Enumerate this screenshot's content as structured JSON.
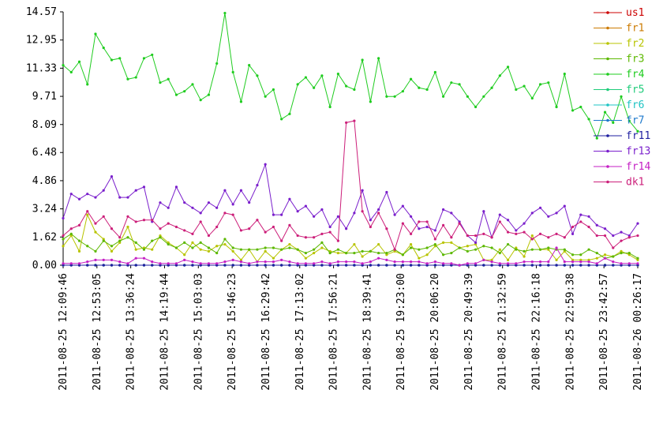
{
  "chart_data": {
    "type": "line",
    "grid": false,
    "legend": "right",
    "x": [
      "2011-08-25 12:09:46",
      "2011-08-25 12:20:08",
      "2011-08-25 12:30:30",
      "2011-08-25 12:40:52",
      "2011-08-25 12:51:14",
      "2011-08-25 13:01:36",
      "2011-08-25 13:11:58",
      "2011-08-25 13:22:20",
      "2011-08-25 13:32:42",
      "2011-08-25 13:43:04",
      "2011-08-25 13:53:26",
      "2011-08-25 14:03:48",
      "2011-08-25 14:14:10",
      "2011-08-25 14:24:32",
      "2011-08-25 14:34:54",
      "2011-08-25 14:45:16",
      "2011-08-25 14:55:38",
      "2011-08-25 15:06:00",
      "2011-08-25 15:16:22",
      "2011-08-25 15:26:44",
      "2011-08-25 15:37:06",
      "2011-08-25 15:47:28",
      "2011-08-25 15:57:50",
      "2011-08-25 16:08:12",
      "2011-08-25 16:18:34",
      "2011-08-25 16:28:56",
      "2011-08-25 16:39:18",
      "2011-08-25 16:49:40",
      "2011-08-25 17:00:02",
      "2011-08-25 17:10:24",
      "2011-08-25 17:20:46",
      "2011-08-25 17:31:08",
      "2011-08-25 17:41:30",
      "2011-08-25 17:51:52",
      "2011-08-25 18:02:14",
      "2011-08-25 18:12:36",
      "2011-08-25 18:22:58",
      "2011-08-25 18:33:20",
      "2011-08-25 18:43:42",
      "2011-08-25 18:54:04",
      "2011-08-25 19:04:26",
      "2011-08-25 19:14:48",
      "2011-08-25 19:25:10",
      "2011-08-25 19:35:32",
      "2011-08-25 19:45:54",
      "2011-08-25 19:56:16",
      "2011-08-25 20:06:38",
      "2011-08-25 20:17:00",
      "2011-08-25 20:27:22",
      "2011-08-25 20:37:44",
      "2011-08-25 20:48:06",
      "2011-08-25 20:58:28",
      "2011-08-25 21:08:50",
      "2011-08-25 21:19:12",
      "2011-08-25 21:29:34",
      "2011-08-25 21:39:56",
      "2011-08-25 21:50:18",
      "2011-08-25 22:00:40",
      "2011-08-25 22:11:02",
      "2011-08-25 22:21:24",
      "2011-08-25 22:31:46",
      "2011-08-25 22:42:08",
      "2011-08-25 22:52:30",
      "2011-08-25 23:02:52",
      "2011-08-25 23:13:14",
      "2011-08-25 23:23:36",
      "2011-08-25 23:33:58",
      "2011-08-25 23:44:20",
      "2011-08-25 23:54:42",
      "2011-08-26 00:05:04",
      "2011-08-26 00:15:26",
      "2011-08-26 00:26:17"
    ],
    "xlim": [
      "2011-08-25 12:09:46",
      "2011-08-26 00:26:17"
    ],
    "xticks": [
      "2011-08-25 12:09:46",
      "2011-08-25 12:53:05",
      "2011-08-25 13:36:24",
      "2011-08-25 14:19:44",
      "2011-08-25 15:03:03",
      "2011-08-25 15:46:23",
      "2011-08-25 16:29:42",
      "2011-08-25 17:13:02",
      "2011-08-25 17:56:21",
      "2011-08-25 18:39:41",
      "2011-08-25 19:23:00",
      "2011-08-25 20:06:20",
      "2011-08-25 20:49:39",
      "2011-08-25 21:32:59",
      "2011-08-25 22:16:18",
      "2011-08-25 22:59:38",
      "2011-08-25 23:42:57",
      "2011-08-26 00:26:17"
    ],
    "ylim": [
      0,
      14.57
    ],
    "yticks": [
      {
        "value": 0,
        "label": "0.00"
      },
      1.62,
      3.24,
      4.86,
      6.48,
      8.09,
      9.71,
      11.33,
      12.95,
      14.57
    ],
    "series": [
      {
        "name": "us1",
        "color": "#cc0000",
        "values": [
          0,
          0,
          0,
          0,
          0,
          0,
          0,
          0,
          0,
          0,
          0,
          0,
          0,
          0,
          0,
          0,
          0,
          0,
          0,
          0,
          0,
          0,
          0,
          0,
          0,
          0,
          0,
          0,
          0,
          0,
          0,
          0,
          0,
          0,
          0,
          0,
          0,
          0,
          0,
          0,
          0,
          0,
          0,
          0,
          0,
          0,
          0,
          0,
          0,
          0,
          0,
          0,
          0,
          0,
          0,
          0,
          0,
          0,
          0,
          0,
          0,
          0,
          0,
          0,
          0,
          0,
          0,
          0,
          0,
          0,
          0,
          0
        ]
      },
      {
        "name": "fr1",
        "color": "#cc7a00",
        "values": [
          0,
          0,
          0,
          0,
          0,
          0,
          0,
          0,
          0,
          0,
          0,
          0,
          0,
          0,
          0,
          0,
          0,
          0,
          0,
          0,
          0,
          0,
          0,
          0,
          0,
          0,
          0,
          0,
          0,
          0,
          0,
          0,
          0,
          0,
          0,
          0,
          0,
          0,
          0,
          0,
          0,
          0,
          0,
          0,
          0,
          0,
          0,
          0,
          0,
          0,
          0,
          0,
          0,
          0,
          0,
          0,
          0,
          0,
          0,
          0,
          0,
          0,
          0,
          0,
          0,
          0,
          0,
          0,
          0,
          0,
          0,
          0
        ]
      },
      {
        "name": "fr2",
        "color": "#b8c400",
        "values": [
          1.1,
          1.7,
          0.8,
          2.9,
          1.9,
          1.5,
          0.8,
          1.3,
          2.2,
          0.9,
          1.0,
          0.9,
          1.7,
          1.3,
          1.0,
          0.6,
          1.3,
          0.9,
          0.8,
          1.1,
          1.2,
          0.8,
          0.3,
          0.9,
          0.2,
          0.8,
          0.4,
          0.9,
          1.2,
          0.9,
          0.4,
          0.7,
          1.0,
          0.8,
          0.7,
          0.7,
          1.2,
          0.5,
          0.8,
          1.2,
          0.6,
          0.8,
          0.6,
          1.2,
          0.4,
          0.6,
          1.1,
          1.3,
          1.3,
          1.0,
          1.1,
          1.2,
          0.3,
          0.3,
          0.9,
          0.3,
          1.0,
          0.5,
          1.7,
          0.9,
          0.9,
          0.3,
          0.8,
          0.3,
          0.3,
          0.3,
          0.4,
          0.6,
          0.5,
          0.8,
          0.6,
          0.3
        ]
      },
      {
        "name": "fr3",
        "color": "#5cb800",
        "values": [
          1.5,
          1.8,
          1.4,
          1.1,
          0.8,
          1.4,
          1.1,
          1.4,
          1.6,
          1.3,
          0.9,
          1.4,
          1.6,
          1.2,
          1.0,
          1.3,
          1.0,
          1.3,
          1.0,
          0.7,
          1.5,
          1.0,
          0.9,
          0.9,
          0.9,
          1.0,
          1.0,
          0.9,
          1.0,
          0.9,
          0.7,
          0.9,
          1.3,
          0.7,
          0.9,
          0.7,
          0.7,
          0.8,
          0.8,
          0.7,
          0.7,
          0.9,
          0.6,
          1.0,
          0.9,
          1.0,
          1.2,
          0.6,
          0.7,
          1.0,
          0.8,
          0.9,
          1.1,
          1.0,
          0.7,
          1.2,
          0.9,
          0.8,
          0.9,
          0.9,
          1.0,
          0.9,
          0.9,
          0.6,
          0.6,
          0.9,
          0.7,
          0.4,
          0.5,
          0.7,
          0.7,
          0.4
        ]
      },
      {
        "name": "fr4",
        "color": "#1fcc1f",
        "values": [
          11.5,
          11.1,
          11.7,
          10.4,
          13.3,
          12.5,
          11.8,
          11.9,
          10.7,
          10.8,
          11.9,
          12.1,
          10.5,
          10.7,
          9.8,
          10.0,
          10.4,
          9.5,
          9.8,
          11.6,
          14.5,
          11.1,
          9.4,
          11.5,
          10.9,
          9.7,
          10.1,
          8.4,
          8.7,
          10.4,
          10.8,
          10.2,
          10.9,
          9.1,
          11.0,
          10.3,
          10.1,
          11.8,
          9.4,
          11.9,
          9.7,
          9.7,
          10.0,
          10.7,
          10.2,
          10.1,
          11.1,
          9.7,
          10.5,
          10.4,
          9.7,
          9.1,
          9.7,
          10.2,
          10.9,
          11.4,
          10.1,
          10.3,
          9.6,
          10.4,
          10.5,
          9.1,
          11.0,
          8.9,
          9.1,
          8.4,
          7.3,
          8.8,
          8.2,
          9.7,
          8.3,
          7.7
        ]
      },
      {
        "name": "fr5",
        "color": "#1fcc7a",
        "values": [
          0,
          0,
          0,
          0,
          0,
          0,
          0,
          0,
          0,
          0,
          0,
          0,
          0,
          0,
          0,
          0,
          0,
          0,
          0,
          0,
          0,
          0,
          0,
          0,
          0,
          0,
          0,
          0,
          0,
          0,
          0,
          0,
          0,
          0,
          0,
          0,
          0,
          0,
          0,
          0,
          0,
          0,
          0,
          0,
          0,
          0,
          0,
          0,
          0,
          0,
          0,
          0,
          0,
          0,
          0,
          0,
          0,
          0,
          0,
          0,
          0,
          0,
          0,
          0,
          0,
          0,
          0,
          0,
          0,
          0,
          0,
          0
        ]
      },
      {
        "name": "fr6",
        "color": "#1fc4c4",
        "values": [
          0,
          0,
          0,
          0,
          0,
          0,
          0,
          0,
          0,
          0,
          0,
          0,
          0,
          0,
          0,
          0,
          0,
          0,
          0,
          0,
          0,
          0,
          0,
          0,
          0,
          0,
          0,
          0,
          0,
          0,
          0,
          0,
          0,
          0,
          0,
          0,
          0,
          0,
          0,
          0,
          0,
          0,
          0,
          0,
          0,
          0,
          0,
          0,
          0,
          0,
          0,
          0,
          0,
          0,
          0,
          0,
          0,
          0,
          0,
          0,
          0,
          0,
          0,
          0,
          0,
          0,
          0,
          0,
          0,
          0,
          0,
          0
        ]
      },
      {
        "name": "fr7",
        "color": "#1f7acc",
        "values": [
          0,
          0,
          0,
          0,
          0,
          0,
          0,
          0,
          0,
          0,
          0,
          0,
          0,
          0,
          0,
          0,
          0,
          0,
          0,
          0,
          0,
          0,
          0,
          0,
          0,
          0,
          0,
          0,
          0,
          0,
          0,
          0,
          0,
          0,
          0,
          0,
          0,
          0,
          0,
          0,
          0,
          0,
          0,
          0,
          0,
          0,
          0,
          0,
          0,
          0,
          0,
          0,
          0,
          0,
          0,
          0,
          0,
          0,
          0,
          0,
          0,
          0,
          0,
          0,
          0,
          0,
          0,
          0,
          0,
          0,
          0,
          0
        ]
      },
      {
        "name": "fr11",
        "color": "#1f1fa0",
        "values": [
          0,
          0,
          0,
          0,
          0,
          0,
          0,
          0,
          0,
          0,
          0,
          0,
          0,
          0,
          0,
          0,
          0,
          0,
          0,
          0,
          0,
          0,
          0,
          0,
          0,
          0,
          0,
          0,
          0,
          0,
          0,
          0,
          0,
          0,
          0,
          0,
          0,
          0,
          0,
          0,
          0,
          0,
          0,
          0,
          0,
          0,
          0,
          0,
          0,
          0,
          0,
          0,
          0,
          0,
          0,
          0,
          0,
          0,
          0,
          0,
          0,
          0,
          0,
          0,
          0,
          0,
          0,
          0,
          0,
          0,
          0,
          0
        ]
      },
      {
        "name": "fr13",
        "color": "#7a1fcc",
        "values": [
          2.7,
          4.1,
          3.8,
          4.1,
          3.9,
          4.3,
          5.1,
          3.9,
          3.9,
          4.3,
          4.5,
          2.5,
          3.6,
          3.3,
          4.5,
          3.6,
          3.3,
          3.0,
          3.6,
          3.3,
          4.3,
          3.5,
          4.3,
          3.6,
          4.6,
          5.8,
          2.9,
          2.9,
          3.8,
          3.1,
          3.4,
          2.8,
          3.2,
          2.2,
          2.8,
          2.1,
          3.0,
          4.3,
          2.6,
          3.2,
          4.2,
          2.9,
          3.4,
          2.8,
          2.1,
          2.2,
          2.0,
          3.2,
          3.0,
          2.5,
          1.7,
          1.3,
          3.1,
          1.6,
          2.9,
          2.6,
          2.0,
          2.4,
          3.0,
          3.3,
          2.8,
          3.0,
          3.4,
          1.8,
          2.9,
          2.8,
          2.3,
          2.1,
          1.7,
          1.9,
          1.7,
          2.4
        ]
      },
      {
        "name": "fr14",
        "color": "#c41fc4",
        "values": [
          0.1,
          0.1,
          0.1,
          0.2,
          0.3,
          0.3,
          0.3,
          0.2,
          0.1,
          0.4,
          0.4,
          0.2,
          0.1,
          0.1,
          0.1,
          0.3,
          0.2,
          0.1,
          0.1,
          0.1,
          0.2,
          0.3,
          0.2,
          0.1,
          0.2,
          0.2,
          0.2,
          0.3,
          0.2,
          0.1,
          0.1,
          0.1,
          0.2,
          0.1,
          0.2,
          0.2,
          0.2,
          0.1,
          0.2,
          0.4,
          0.3,
          0.2,
          0.2,
          0.2,
          0.2,
          0.1,
          0.2,
          0.1,
          0.1,
          0.0,
          0.1,
          0.1,
          0.3,
          0.2,
          0.1,
          0.1,
          0.1,
          0.2,
          0.2,
          0.2,
          0.2,
          1.0,
          0.2,
          0.2,
          0.2,
          0.2,
          0.1,
          0.4,
          0.2,
          0.1,
          0.1,
          0.1
        ]
      },
      {
        "name": "dk1",
        "color": "#cc1f7a",
        "values": [
          1.7,
          2.1,
          2.3,
          3.1,
          2.4,
          2.8,
          2.1,
          1.6,
          2.8,
          2.5,
          2.6,
          2.6,
          2.1,
          2.4,
          2.2,
          2.0,
          1.8,
          2.5,
          1.7,
          2.2,
          3.0,
          2.9,
          2.0,
          2.1,
          2.6,
          1.9,
          2.2,
          1.4,
          2.3,
          1.7,
          1.6,
          1.6,
          1.8,
          1.9,
          1.4,
          8.2,
          8.3,
          3.1,
          2.2,
          3.0,
          2.1,
          0.9,
          2.4,
          1.8,
          2.5,
          2.5,
          1.5,
          2.3,
          1.6,
          2.4,
          1.7,
          1.7,
          1.8,
          1.6,
          2.5,
          1.9,
          1.8,
          1.9,
          1.5,
          1.8,
          1.6,
          1.8,
          1.6,
          2.2,
          2.5,
          2.2,
          1.7,
          1.7,
          1.0,
          1.4,
          1.6,
          1.7
        ]
      }
    ]
  }
}
